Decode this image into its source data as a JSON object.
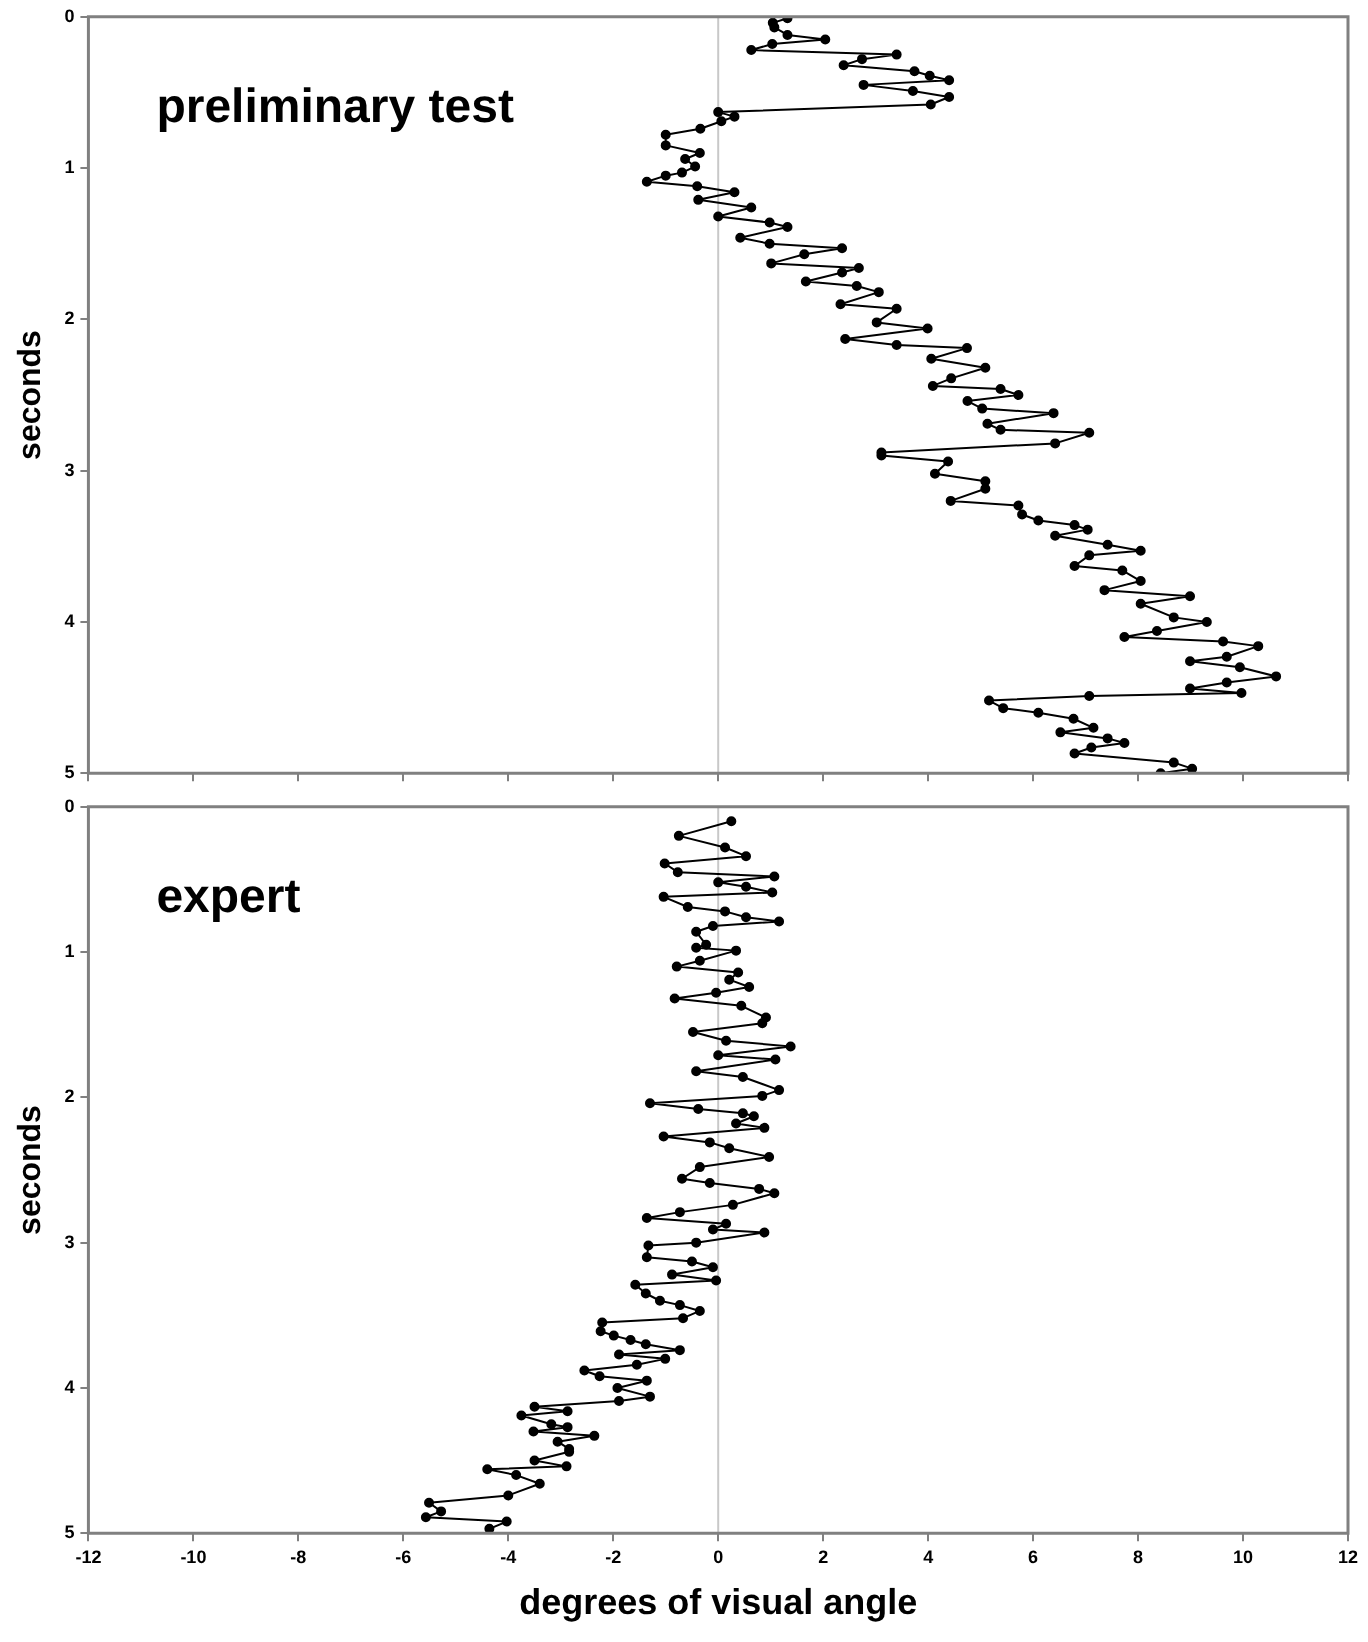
{
  "chart_data": [
    {
      "type": "line",
      "annotations": [
        "preliminary test"
      ],
      "ylabel": "seconds",
      "xlim": [
        -12,
        12
      ],
      "xticks": [
        -12,
        -10,
        -8,
        -6,
        -4,
        -2,
        0,
        2,
        4,
        6,
        8,
        10,
        12
      ],
      "ylim": [
        5,
        0
      ],
      "yticks": [
        0,
        1,
        2,
        3,
        4,
        5
      ],
      "tick_labels": "y",
      "grid": false,
      "marker": "circle",
      "line_style": "solid",
      "color": "#000000",
      "ref_lines": [
        {
          "axis": "x",
          "value": 0,
          "color": "#c8c8c8"
        }
      ],
      "x": [
        1.32,
        1.04,
        1.07,
        1.32,
        2.04,
        1.03,
        0.63,
        3.4,
        2.74,
        2.39,
        3.74,
        4.03,
        4.4,
        2.77,
        3.71,
        4.4,
        4.05,
        0,
        0.31,
        0.06,
        -0.34,
        -1.0,
        -1.0,
        -0.35,
        -0.63,
        -0.44,
        -0.69,
        -1.0,
        -1.36,
        -0.4,
        0.31,
        -0.38,
        0.63,
        0,
        0.98,
        1.32,
        0.42,
        0.98,
        2.36,
        1.64,
        1.01,
        2.68,
        2.36,
        1.67,
        2.64,
        3.06,
        2.33,
        3.4,
        3.02,
        3.99,
        2.42,
        3.4,
        4.74,
        4.06,
        5.09,
        4.44,
        4.09,
        5.38,
        5.72,
        4.75,
        5.03,
        6.39,
        5.13,
        5.38,
        7.07,
        6.42,
        3.11,
        3.11,
        4.38,
        4.13,
        5.09,
        5.09,
        4.43,
        5.72,
        5.79,
        6.1,
        6.79,
        7.04,
        6.42,
        7.42,
        8.05,
        7.07,
        6.79,
        7.7,
        8.05,
        7.36,
        8.99,
        8.05,
        8.68,
        9.31,
        8.36,
        7.74,
        9.62,
        10.29,
        9.69,
        8.99,
        9.94,
        10.63,
        9.69,
        8.99,
        9.97,
        7.07,
        5.16,
        5.43,
        6.1,
        6.77,
        7.15,
        6.52,
        7.42,
        7.74,
        7.11,
        6.79,
        8.68,
        9.03,
        8.43
      ],
      "values": [
        0.01,
        0.04,
        0.07,
        0.12,
        0.15,
        0.18,
        0.22,
        0.25,
        0.28,
        0.32,
        0.36,
        0.39,
        0.42,
        0.45,
        0.49,
        0.53,
        0.58,
        0.63,
        0.66,
        0.69,
        0.74,
        0.78,
        0.85,
        0.9,
        0.94,
        0.99,
        1.03,
        1.05,
        1.09,
        1.12,
        1.16,
        1.21,
        1.26,
        1.32,
        1.36,
        1.39,
        1.46,
        1.5,
        1.53,
        1.57,
        1.63,
        1.66,
        1.69,
        1.75,
        1.78,
        1.82,
        1.9,
        1.93,
        2.02,
        2.06,
        2.13,
        2.17,
        2.19,
        2.26,
        2.32,
        2.39,
        2.44,
        2.46,
        2.5,
        2.54,
        2.59,
        2.62,
        2.69,
        2.73,
        2.75,
        2.82,
        2.88,
        2.9,
        2.94,
        3.02,
        3.07,
        3.12,
        3.2,
        3.23,
        3.29,
        3.33,
        3.36,
        3.39,
        3.43,
        3.49,
        3.53,
        3.56,
        3.63,
        3.66,
        3.73,
        3.79,
        3.83,
        3.88,
        3.97,
        4.0,
        4.06,
        4.1,
        4.13,
        4.16,
        4.23,
        4.26,
        4.3,
        4.36,
        4.4,
        4.44,
        4.47,
        4.49,
        4.52,
        4.57,
        4.6,
        4.64,
        4.7,
        4.73,
        4.77,
        4.8,
        4.83,
        4.87,
        4.93,
        4.97,
        5.0
      ]
    },
    {
      "type": "line",
      "annotations": [
        "expert"
      ],
      "xlabel": "degrees of visual angle",
      "ylabel": "seconds",
      "xlim": [
        -12,
        12
      ],
      "xticks": [
        -12,
        -10,
        -8,
        -6,
        -4,
        -2,
        0,
        2,
        4,
        6,
        8,
        10,
        12
      ],
      "ylim": [
        5,
        0
      ],
      "yticks": [
        0,
        1,
        2,
        3,
        4,
        5
      ],
      "grid": false,
      "marker": "circle",
      "line_style": "solid",
      "color": "#000000",
      "ref_lines": [
        {
          "axis": "x",
          "value": 0,
          "color": "#c8c8c8"
        }
      ],
      "x": [
        0.25,
        -0.75,
        0.13,
        0.53,
        -1.02,
        -0.77,
        1.07,
        0,
        0.53,
        1.03,
        -1.04,
        -0.58,
        0.13,
        0.53,
        1.16,
        -0.1,
        -0.42,
        -0.23,
        -0.42,
        0.34,
        -0.35,
        -0.79,
        0.38,
        0.21,
        0.59,
        -0.04,
        -0.83,
        0.44,
        0.91,
        0.84,
        -0.48,
        0.15,
        1.38,
        0,
        1.09,
        -0.42,
        0.47,
        1.16,
        0.84,
        -1.3,
        -0.38,
        0.47,
        0.68,
        0.34,
        0.88,
        -1.04,
        -0.16,
        0.21,
        0.97,
        -0.35,
        -0.69,
        -0.16,
        0.78,
        1.07,
        0.28,
        -0.73,
        -1.36,
        0.15,
        -0.1,
        0.88,
        -0.42,
        -1.33,
        -1.36,
        -0.5,
        -0.1,
        -0.88,
        -0.04,
        -1.58,
        -1.38,
        -1.11,
        -0.73,
        -0.35,
        -0.67,
        -2.21,
        -2.24,
        -1.99,
        -1.67,
        -1.38,
        -0.73,
        -1.89,
        -1.01,
        -1.55,
        -2.55,
        -2.26,
        -1.36,
        -1.92,
        -1.3,
        -1.89,
        -3.5,
        -2.87,
        -3.75,
        -3.18,
        -2.87,
        -3.52,
        -2.36,
        -3.06,
        -2.84,
        -2.84,
        -3.5,
        -2.89,
        -4.4,
        -3.85,
        -3.4,
        -4.0,
        -5.51,
        -5.28,
        -5.57,
        -4.03,
        -4.36
      ],
      "values": [
        0.1,
        0.2,
        0.28,
        0.34,
        0.39,
        0.45,
        0.48,
        0.52,
        0.55,
        0.59,
        0.62,
        0.69,
        0.72,
        0.76,
        0.79,
        0.82,
        0.86,
        0.95,
        0.97,
        0.99,
        1.06,
        1.1,
        1.14,
        1.19,
        1.24,
        1.28,
        1.32,
        1.37,
        1.45,
        1.49,
        1.55,
        1.61,
        1.65,
        1.71,
        1.74,
        1.82,
        1.86,
        1.95,
        1.99,
        2.04,
        2.08,
        2.11,
        2.13,
        2.18,
        2.21,
        2.27,
        2.31,
        2.35,
        2.41,
        2.48,
        2.56,
        2.59,
        2.63,
        2.66,
        2.74,
        2.79,
        2.83,
        2.87,
        2.91,
        2.93,
        3.0,
        3.02,
        3.1,
        3.13,
        3.17,
        3.22,
        3.26,
        3.29,
        3.35,
        3.4,
        3.43,
        3.47,
        3.52,
        3.55,
        3.61,
        3.64,
        3.67,
        3.7,
        3.74,
        3.77,
        3.8,
        3.84,
        3.88,
        3.92,
        3.95,
        4.0,
        4.06,
        4.09,
        4.13,
        4.16,
        4.19,
        4.25,
        4.27,
        4.3,
        4.33,
        4.37,
        4.42,
        4.44,
        4.5,
        4.54,
        4.56,
        4.6,
        4.66,
        4.74,
        4.79,
        4.85,
        4.89,
        4.92,
        4.97
      ]
    }
  ]
}
